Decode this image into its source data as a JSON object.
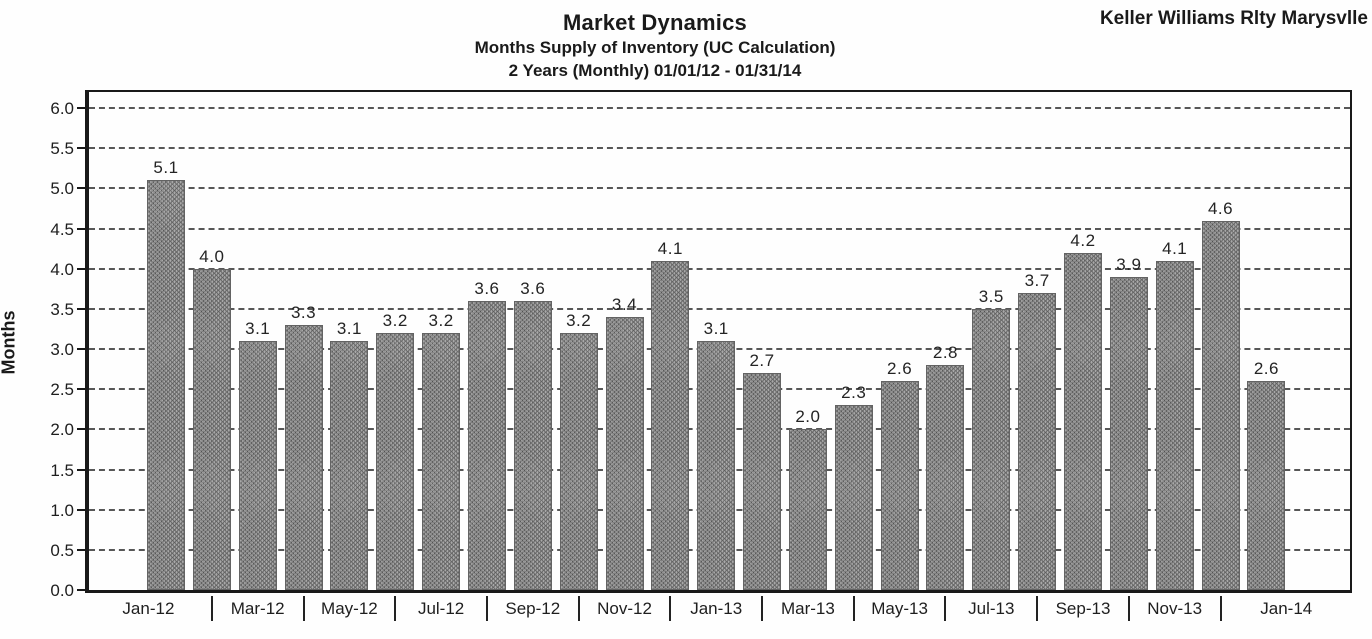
{
  "header": {
    "title": "Market Dynamics",
    "subtitle": "Months Supply of Inventory (UC Calculation)",
    "period": "2 Years (Monthly) 01/01/12 - 01/31/14",
    "brand": "Keller Williams Rlty Marysvlle"
  },
  "chart_data": {
    "type": "bar",
    "title": "Market Dynamics",
    "subtitle": "Months Supply of Inventory (UC Calculation)",
    "period": "2 Years (Monthly) 01/01/12 - 01/31/14",
    "ylabel": "Months",
    "xlabel": "",
    "categories": [
      "Jan-12",
      "Feb-12",
      "Mar-12",
      "Apr-12",
      "May-12",
      "Jun-12",
      "Jul-12",
      "Aug-12",
      "Sep-12",
      "Oct-12",
      "Nov-12",
      "Dec-12",
      "Jan-13",
      "Feb-13",
      "Mar-13",
      "Apr-13",
      "May-13",
      "Jun-13",
      "Jul-13",
      "Aug-13",
      "Sep-13",
      "Oct-13",
      "Nov-13",
      "Dec-13",
      "Jan-14"
    ],
    "values": [
      5.1,
      4.0,
      3.1,
      3.3,
      3.1,
      3.2,
      3.2,
      3.6,
      3.6,
      3.2,
      3.4,
      4.1,
      3.1,
      2.7,
      2.0,
      2.3,
      2.6,
      2.8,
      3.5,
      3.7,
      4.2,
      3.9,
      4.1,
      4.6,
      2.6
    ],
    "x_tick_labels": [
      "Jan-12",
      "Mar-12",
      "May-12",
      "Jul-12",
      "Sep-12",
      "Nov-12",
      "Jan-13",
      "Mar-13",
      "May-13",
      "Jul-13",
      "Sep-13",
      "Nov-13",
      "Jan-14"
    ],
    "y_ticks": [
      0.0,
      0.5,
      1.0,
      1.5,
      2.0,
      2.5,
      3.0,
      3.5,
      4.0,
      4.5,
      5.0,
      5.5,
      6.0
    ],
    "ylim": [
      0,
      6.2
    ],
    "grid": "horizontal-dashed",
    "legend": "none",
    "bar_color": "#9d9d9d",
    "axis_color": "#191919"
  }
}
